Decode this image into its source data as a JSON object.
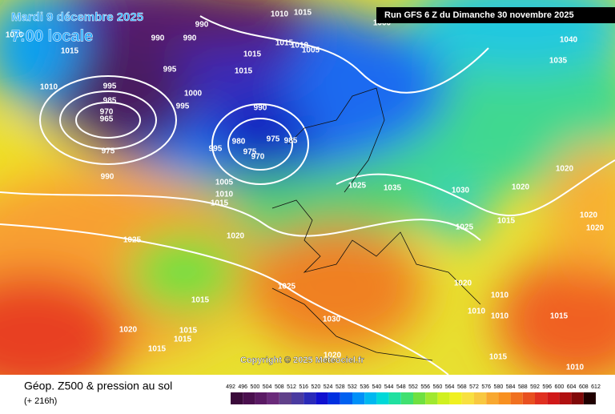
{
  "header": {
    "date": "Mardi 9 décembre 2025",
    "time": "7:00 locale",
    "run": "Run GFS 6 Z du Dimanche 30 novembre 2025"
  },
  "copyright": "Copyright © 2025 Meteociel.fr",
  "footer": {
    "title": "Géop. Z500 & pression au sol",
    "lead": "(+ 216h)"
  },
  "colorbar": {
    "labels": [
      492,
      496,
      500,
      504,
      508,
      512,
      516,
      520,
      524,
      528,
      532,
      536,
      540,
      544,
      548,
      552,
      556,
      560,
      564,
      568,
      572,
      576,
      580,
      584,
      588,
      592,
      596,
      600,
      604,
      608,
      612
    ]
  },
  "isobar_labels": [
    1010,
    1015,
    990,
    990,
    990,
    1015,
    995,
    1010,
    995,
    985,
    970,
    965,
    975,
    990,
    1000,
    995,
    990,
    1015,
    1015,
    1015,
    1010,
    1005,
    980,
    975,
    975,
    970,
    985,
    995,
    1005,
    1010,
    1015,
    1020,
    1025,
    1025,
    1035,
    1030,
    1025,
    1015,
    1020,
    1020,
    1020,
    1020,
    1040,
    1035,
    1025,
    1030,
    1020,
    1010,
    1010,
    1010,
    1015,
    1015,
    1020,
    1015,
    1015,
    1015,
    1015,
    1010,
    1020,
    1000,
    1020
  ]
}
